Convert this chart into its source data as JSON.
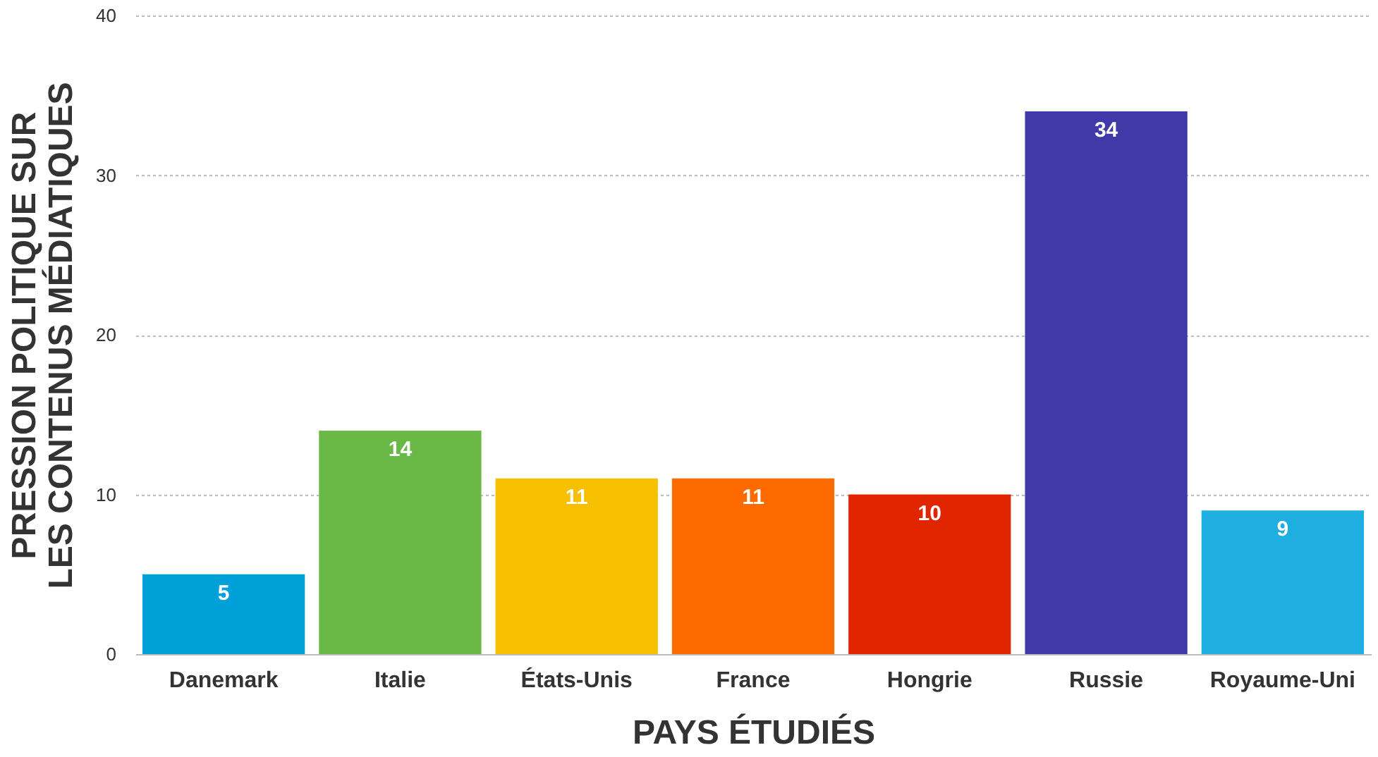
{
  "chart_data": {
    "type": "bar",
    "xlabel": "PAYS ÉTUDIÉS",
    "ylabel": "PRESSION POLITIQUE SUR LES CONTENUS MÉDIATIQUES",
    "categories": [
      "Danemark",
      "Italie",
      "États-Unis",
      "France",
      "Hongrie",
      "Russie",
      "Royaume-Uni"
    ],
    "values": [
      5,
      14,
      11,
      11,
      10,
      34,
      9
    ],
    "colors": [
      "#00a0d8",
      "#6ab947",
      "#f6c000",
      "#ff6a00",
      "#e02500",
      "#3f3aa8",
      "#1eaee0"
    ],
    "ylim": [
      0,
      40
    ],
    "yticks": [
      0,
      10,
      20,
      30,
      40
    ],
    "grid": "y",
    "data_labels": true,
    "legend": false
  }
}
